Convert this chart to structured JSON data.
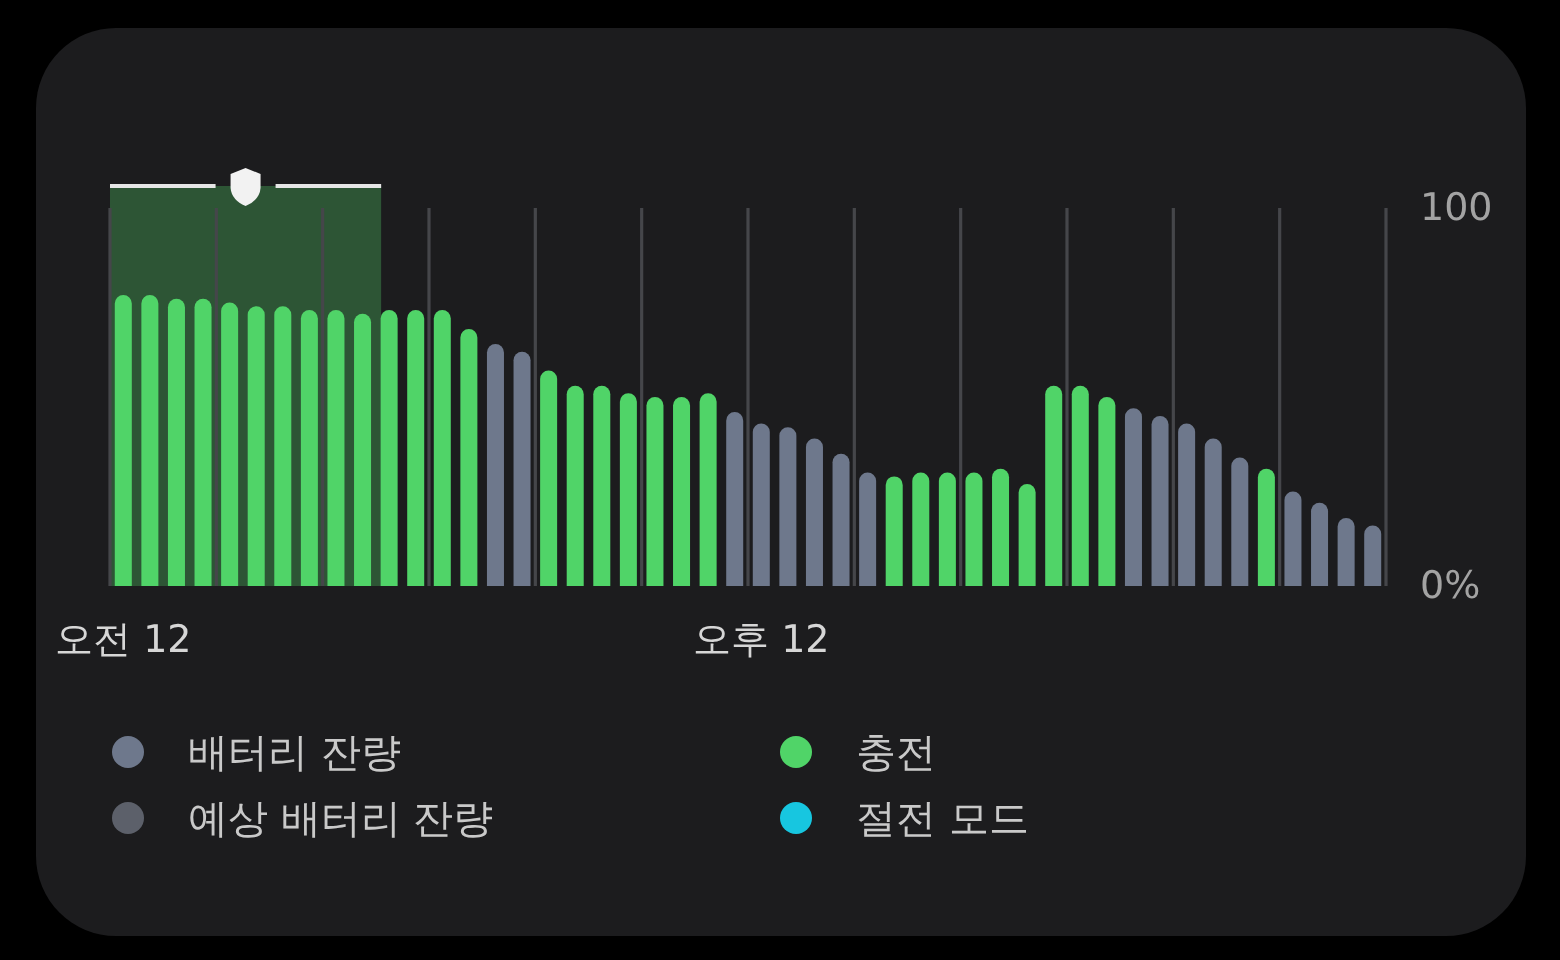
{
  "chart_data": {
    "type": "bar",
    "stacked": true,
    "categories": [
      "오전 12",
      null,
      null,
      null,
      null,
      null,
      null,
      null,
      null,
      null,
      null,
      null,
      null,
      null,
      null,
      null,
      null,
      null,
      null,
      null,
      null,
      null,
      null,
      null,
      "오후 12",
      null,
      null,
      null,
      null,
      null,
      null,
      null,
      null,
      null,
      null,
      null,
      null,
      null,
      null,
      null,
      null,
      null,
      null,
      null,
      null,
      null,
      null,
      null
    ],
    "ylim": [
      0,
      100
    ],
    "yticks": [
      {
        "value": 0,
        "label": "0%"
      },
      100
    ],
    "grid": "x",
    "legend": "bottom",
    "series": [
      {
        "name": "배터리 잔량",
        "color": "#6e788c",
        "values": [
          null,
          null,
          null,
          null,
          null,
          null,
          null,
          null,
          null,
          null,
          null,
          null,
          null,
          null,
          64,
          62,
          null,
          null,
          null,
          null,
          null,
          null,
          null,
          46,
          43,
          42,
          39,
          35,
          30,
          null,
          null,
          null,
          null,
          null,
          null,
          null,
          null,
          null,
          47,
          45,
          43,
          39,
          34,
          null,
          25,
          22,
          18,
          16
        ]
      },
      {
        "name": "예상 배터리 잔량",
        "color": "#5c606a",
        "values": [
          null,
          null,
          null,
          null,
          null,
          null,
          null,
          null,
          null,
          null,
          null,
          null,
          null,
          null,
          null,
          null,
          null,
          null,
          null,
          null,
          null,
          null,
          null,
          null,
          null,
          null,
          null,
          null,
          null,
          null,
          null,
          null,
          null,
          null,
          null,
          null,
          null,
          null,
          null,
          null,
          null,
          null,
          null,
          null,
          null,
          null,
          null,
          null
        ]
      },
      {
        "name": "충전",
        "color": "#50d468",
        "values": [
          77,
          77,
          76,
          76,
          75,
          74,
          74,
          73,
          73,
          72,
          73,
          73,
          73,
          68,
          null,
          null,
          57,
          53,
          53,
          51,
          50,
          50,
          51,
          null,
          null,
          null,
          null,
          null,
          null,
          29,
          30,
          30,
          30,
          31,
          27,
          53,
          53,
          50,
          null,
          null,
          null,
          null,
          null,
          31,
          null,
          null,
          null,
          null
        ]
      },
      {
        "name": "절전 모드",
        "color": "#17c6e0",
        "values": [
          null,
          null,
          null,
          null,
          null,
          null,
          null,
          null,
          null,
          null,
          null,
          null,
          null,
          null,
          null,
          null,
          null,
          null,
          null,
          null,
          null,
          null,
          null,
          null,
          null,
          null,
          null,
          null,
          null,
          null,
          null,
          null,
          null,
          null,
          null,
          null,
          null,
          null,
          null,
          null,
          null,
          null,
          null,
          null,
          null,
          null,
          null,
          null
        ]
      }
    ]
  }
}
